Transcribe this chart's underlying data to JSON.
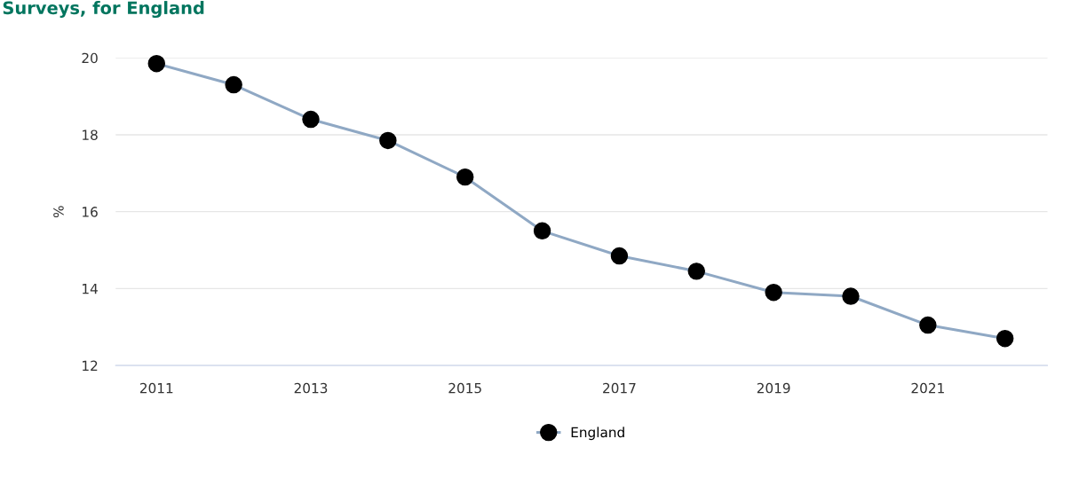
{
  "chart_data": {
    "type": "line",
    "title": "Surveys, for England",
    "ylabel": "%",
    "x": [
      2011,
      2012,
      2013,
      2014,
      2015,
      2016,
      2017,
      2018,
      2019,
      2020,
      2021,
      2022
    ],
    "series": [
      {
        "name": "England",
        "color": "#8fa8c4",
        "values": [
          19.85,
          19.3,
          18.4,
          17.85,
          16.9,
          15.5,
          14.85,
          14.45,
          13.9,
          13.8,
          13.05,
          12.7
        ]
      }
    ],
    "xlim": [
      2010.47,
      2022.55
    ],
    "xticks": [
      2011,
      2013,
      2015,
      2017,
      2019,
      2021
    ],
    "ylim": [
      12,
      20
    ],
    "yticks": [
      12,
      14,
      16,
      18,
      20
    ],
    "grid": "y",
    "legend": "bottom",
    "marker": "circle",
    "line_style": "solid"
  }
}
